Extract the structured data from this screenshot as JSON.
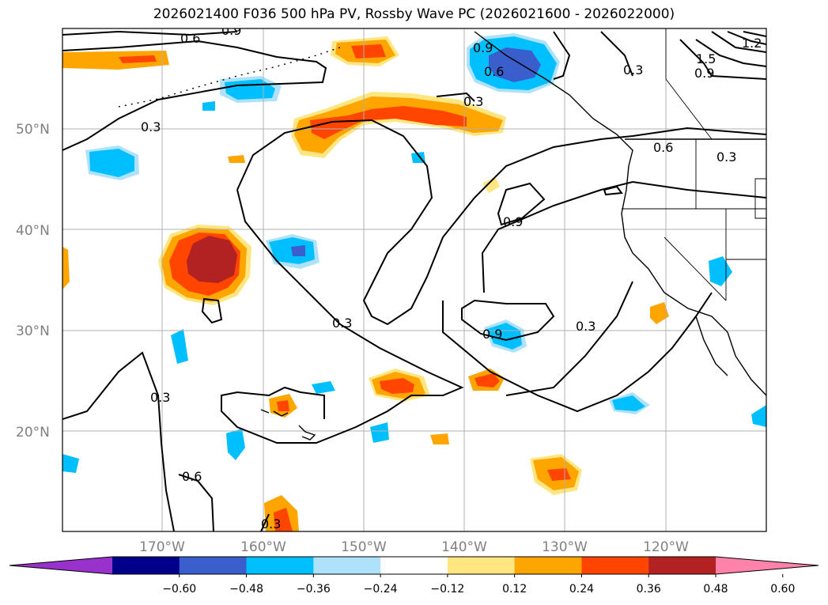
{
  "title": "2026021400 F036 500 hPa PV, Rossby Wave PC (2026021600 - 2026022000)",
  "map": {
    "lat_labels": [
      "50°N",
      "40°N",
      "30°N",
      "20°N"
    ],
    "lon_labels": [
      "170°W",
      "160°W",
      "150°W",
      "140°W",
      "130°W",
      "120°W"
    ],
    "contour_labels": [
      "0.6",
      "0.9",
      "0.9",
      "0.6",
      "0.3",
      "0.9",
      "1.5",
      "1.2",
      "0.3",
      "0.3",
      "0.6",
      "0.3",
      "0.9",
      "0.3",
      "0.9",
      "0.3",
      "0.3",
      "0.6",
      "0.3"
    ],
    "colors": {
      "land_outline": "#000000",
      "grid": "#b0b0b0",
      "neg_light": "#aee2fa",
      "neg_mid": "#00bfff",
      "neg_dark": "#3a5fcd",
      "pos_light": "#ffe680",
      "pos_mid": "#ffa500",
      "pos_dark": "#ff4500",
      "pos_darkest": "#b22222"
    }
  },
  "colorbar": {
    "ticks": [
      "−0.60",
      "−0.48",
      "−0.36",
      "−0.24",
      "−0.12",
      "0.12",
      "0.24",
      "0.36",
      "0.48",
      "0.60"
    ],
    "colors": [
      "#9932cc",
      "#00008b",
      "#3a5fcd",
      "#00bfff",
      "#aee2fa",
      "#ffffff",
      "#ffe680",
      "#ffa500",
      "#ff4500",
      "#b22222",
      "#ff82ab"
    ]
  }
}
